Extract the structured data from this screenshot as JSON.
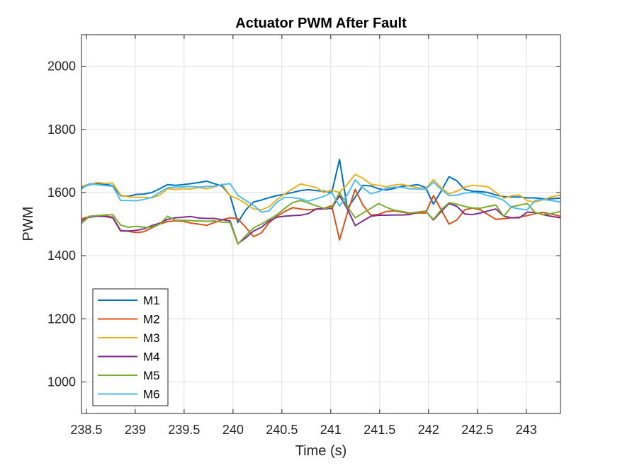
{
  "chart_data": {
    "type": "line",
    "title": "Actuator PWM After Fault",
    "xlabel": "Time (s)",
    "ylabel": "PWM",
    "xlim": [
      238.45,
      243.35
    ],
    "ylim": [
      900,
      2100
    ],
    "xticks": [
      238.5,
      239,
      239.5,
      240,
      240.5,
      241,
      241.5,
      242,
      242.5,
      243
    ],
    "xtick_labels": [
      "238.5",
      "239",
      "239.5",
      "240",
      "240.5",
      "241",
      "241.5",
      "242",
      "242.5",
      "243"
    ],
    "yticks": [
      1000,
      1200,
      1400,
      1600,
      1800,
      2000
    ],
    "ytick_labels": [
      "1000",
      "1200",
      "1400",
      "1600",
      "1800",
      "2000"
    ],
    "grid": true,
    "legend_position": "bottom-left",
    "x": [
      238.45,
      238.53,
      238.61,
      238.69,
      238.77,
      238.85,
      238.93,
      239.01,
      239.09,
      239.17,
      239.25,
      239.33,
      239.41,
      239.49,
      239.57,
      239.65,
      239.73,
      239.81,
      239.89,
      239.97,
      240.05,
      240.13,
      240.21,
      240.29,
      240.37,
      240.45,
      240.53,
      240.61,
      240.69,
      240.77,
      240.85,
      240.93,
      241.01,
      241.09,
      241.17,
      241.25,
      241.33,
      241.41,
      241.49,
      241.57,
      241.65,
      241.73,
      241.81,
      241.89,
      241.97,
      242.05,
      242.13,
      242.21,
      242.29,
      242.37,
      242.45,
      242.53,
      242.61,
      242.69,
      242.77,
      242.85,
      242.93,
      243.01,
      243.09,
      243.17,
      243.25,
      243.35
    ],
    "series": [
      {
        "name": "M1",
        "color": "#0072BD",
        "values": [
          1615,
          1625,
          1628,
          1626,
          1622,
          1590,
          1588,
          1594,
          1595,
          1600,
          1612,
          1625,
          1623,
          1625,
          1628,
          1632,
          1636,
          1628,
          1620,
          1590,
          1505,
          1545,
          1570,
          1576,
          1584,
          1590,
          1595,
          1600,
          1606,
          1609,
          1606,
          1604,
          1600,
          1705,
          1550,
          1585,
          1623,
          1621,
          1612,
          1608,
          1613,
          1620,
          1622,
          1625,
          1616,
          1563,
          1605,
          1650,
          1637,
          1610,
          1604,
          1603,
          1600,
          1592,
          1587,
          1586,
          1586,
          1583,
          1583,
          1580,
          1580,
          1582
        ]
      },
      {
        "name": "M2",
        "color": "#D95319",
        "values": [
          1517,
          1523,
          1527,
          1526,
          1522,
          1480,
          1477,
          1473,
          1476,
          1488,
          1500,
          1508,
          1510,
          1509,
          1503,
          1500,
          1496,
          1505,
          1514,
          1520,
          1517,
          1490,
          1460,
          1472,
          1505,
          1525,
          1540,
          1552,
          1548,
          1545,
          1547,
          1550,
          1558,
          1450,
          1535,
          1610,
          1560,
          1528,
          1531,
          1540,
          1542,
          1538,
          1533,
          1535,
          1535,
          1590,
          1545,
          1500,
          1513,
          1545,
          1551,
          1545,
          1530,
          1515,
          1517,
          1520,
          1522,
          1527,
          1533,
          1537,
          1532,
          1525
        ]
      },
      {
        "name": "M3",
        "color": "#EDB120",
        "values": [
          1620,
          1626,
          1632,
          1629,
          1630,
          1592,
          1586,
          1585,
          1585,
          1583,
          1592,
          1612,
          1610,
          1612,
          1611,
          1616,
          1612,
          1618,
          1626,
          1590,
          1580,
          1565,
          1548,
          1545,
          1555,
          1578,
          1596,
          1612,
          1627,
          1622,
          1616,
          1600,
          1608,
          1600,
          1626,
          1657,
          1645,
          1626,
          1623,
          1618,
          1624,
          1626,
          1620,
          1616,
          1612,
          1641,
          1615,
          1596,
          1604,
          1617,
          1623,
          1621,
          1618,
          1600,
          1582,
          1590,
          1592,
          1574,
          1570,
          1577,
          1586,
          1592
        ]
      },
      {
        "name": "M4",
        "color": "#7E2F8E",
        "values": [
          1510,
          1522,
          1525,
          1524,
          1520,
          1478,
          1478,
          1480,
          1485,
          1495,
          1503,
          1515,
          1520,
          1522,
          1524,
          1519,
          1518,
          1518,
          1514,
          1510,
          1438,
          1456,
          1478,
          1490,
          1510,
          1522,
          1525,
          1527,
          1528,
          1533,
          1548,
          1548,
          1550,
          1590,
          1548,
          1495,
          1510,
          1525,
          1528,
          1528,
          1529,
          1529,
          1530,
          1538,
          1541,
          1513,
          1540,
          1565,
          1556,
          1532,
          1530,
          1535,
          1542,
          1548,
          1525,
          1520,
          1520,
          1538,
          1537,
          1530,
          1525,
          1520
        ]
      },
      {
        "name": "M5",
        "color": "#77AC30",
        "values": [
          1502,
          1525,
          1527,
          1529,
          1530,
          1497,
          1490,
          1493,
          1490,
          1490,
          1500,
          1525,
          1512,
          1512,
          1511,
          1510,
          1509,
          1510,
          1506,
          1505,
          1437,
          1463,
          1488,
          1500,
          1515,
          1530,
          1550,
          1568,
          1575,
          1567,
          1558,
          1550,
          1553,
          1600,
          1555,
          1520,
          1535,
          1550,
          1565,
          1553,
          1544,
          1540,
          1535,
          1538,
          1540,
          1515,
          1545,
          1568,
          1563,
          1556,
          1551,
          1550,
          1556,
          1560,
          1525,
          1555,
          1560,
          1565,
          1537,
          1530,
          1533,
          1540
        ]
      },
      {
        "name": "M6",
        "color": "#4DBEEE",
        "values": [
          1611,
          1628,
          1625,
          1622,
          1620,
          1575,
          1575,
          1574,
          1578,
          1585,
          1600,
          1615,
          1617,
          1618,
          1619,
          1617,
          1619,
          1620,
          1625,
          1628,
          1591,
          1575,
          1560,
          1538,
          1542,
          1570,
          1585,
          1584,
          1580,
          1573,
          1580,
          1588,
          1600,
          1557,
          1593,
          1640,
          1615,
          1596,
          1603,
          1614,
          1617,
          1616,
          1612,
          1611,
          1610,
          1633,
          1610,
          1590,
          1592,
          1598,
          1600,
          1598,
          1590,
          1585,
          1575,
          1553,
          1548,
          1545,
          1575,
          1578,
          1575,
          1570
        ]
      }
    ]
  }
}
